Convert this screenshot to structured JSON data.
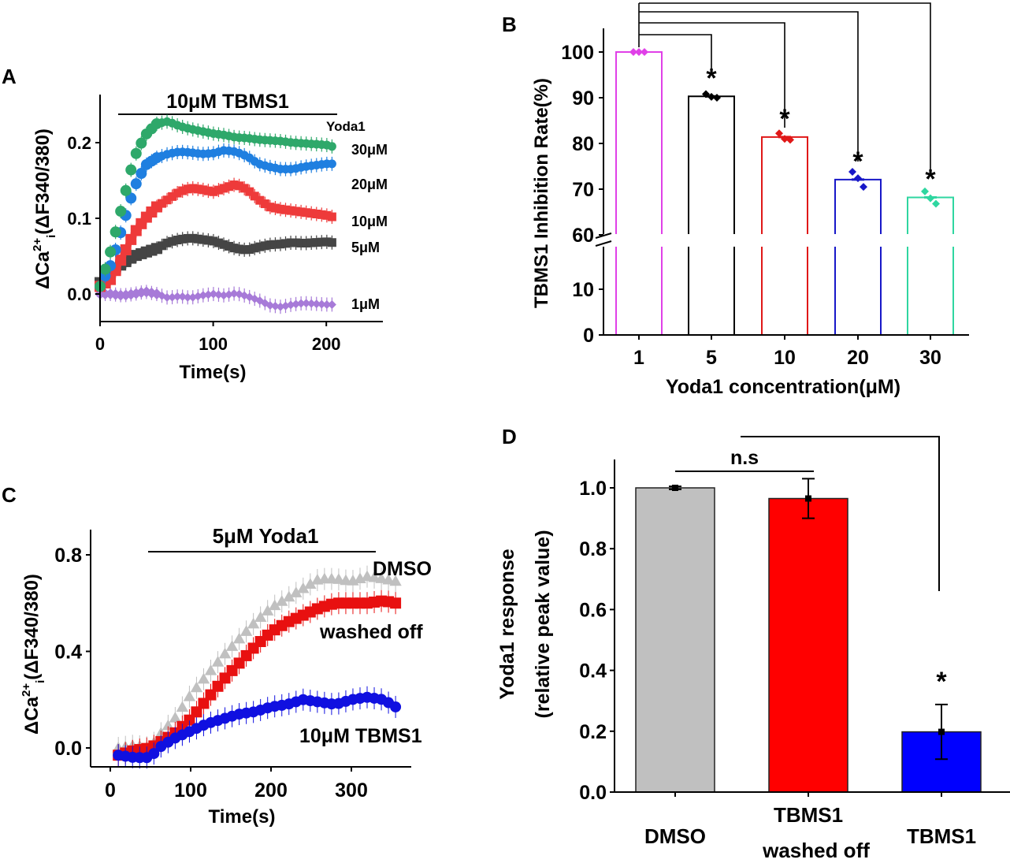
{
  "chart_data": [
    {
      "panel": "A",
      "type": "scatter",
      "title": "10μM TBMS1",
      "xlabel": "Time(s)",
      "ylabel_main": "ΔCa",
      "ylabel_sup": "2+",
      "ylabel_sub": "i",
      "ylabel_rest": "(ΔF340/380)",
      "legend_title": "Yoda1",
      "xlim": [
        0,
        250
      ],
      "ylim": [
        -0.03,
        0.25
      ],
      "xticks": [
        "0",
        "100",
        "200"
      ],
      "xtick_values": [
        0,
        100,
        200
      ],
      "yticks": [
        "0.0",
        "0.1",
        "0.2"
      ],
      "ytick_values": [
        0.0,
        0.1,
        0.2
      ],
      "treatment_bar": [
        18,
        210
      ],
      "series": [
        {
          "name": "30μM",
          "color": "#2ea86a",
          "x": [
            0,
            10,
            20,
            30,
            40,
            50,
            60,
            70,
            80,
            90,
            100,
            110,
            120,
            130,
            140,
            150,
            160,
            170,
            180,
            190,
            200,
            205
          ],
          "y": [
            0.01,
            0.06,
            0.12,
            0.18,
            0.21,
            0.225,
            0.228,
            0.222,
            0.218,
            0.215,
            0.212,
            0.21,
            0.207,
            0.206,
            0.204,
            0.203,
            0.202,
            0.2,
            0.199,
            0.198,
            0.197,
            0.195
          ]
        },
        {
          "name": "20μM",
          "color": "#1f7fe0",
          "x": [
            0,
            10,
            20,
            30,
            40,
            50,
            60,
            70,
            80,
            90,
            100,
            110,
            120,
            130,
            140,
            150,
            160,
            170,
            180,
            190,
            200,
            205
          ],
          "y": [
            0.01,
            0.04,
            0.09,
            0.14,
            0.17,
            0.18,
            0.185,
            0.188,
            0.187,
            0.185,
            0.186,
            0.19,
            0.188,
            0.182,
            0.172,
            0.168,
            0.165,
            0.165,
            0.168,
            0.17,
            0.172,
            0.172
          ]
        },
        {
          "name": "10μM",
          "color": "#ee3a3a",
          "x": [
            0,
            10,
            20,
            30,
            40,
            50,
            60,
            70,
            80,
            90,
            100,
            110,
            120,
            130,
            140,
            150,
            160,
            170,
            180,
            190,
            200,
            205
          ],
          "y": [
            0.01,
            0.02,
            0.05,
            0.08,
            0.1,
            0.115,
            0.125,
            0.135,
            0.14,
            0.138,
            0.135,
            0.14,
            0.145,
            0.138,
            0.125,
            0.115,
            0.112,
            0.11,
            0.108,
            0.106,
            0.104,
            0.102
          ]
        },
        {
          "name": "5μM",
          "color": "#454545",
          "x": [
            0,
            10,
            20,
            30,
            40,
            50,
            60,
            70,
            80,
            90,
            100,
            110,
            120,
            130,
            140,
            150,
            160,
            170,
            180,
            190,
            200,
            205
          ],
          "y": [
            0.015,
            0.03,
            0.04,
            0.05,
            0.055,
            0.06,
            0.068,
            0.072,
            0.074,
            0.072,
            0.07,
            0.065,
            0.06,
            0.058,
            0.062,
            0.065,
            0.066,
            0.068,
            0.067,
            0.068,
            0.069,
            0.068
          ]
        },
        {
          "name": "1μM",
          "color": "#a77ad8",
          "x": [
            0,
            10,
            20,
            30,
            40,
            50,
            60,
            70,
            80,
            90,
            100,
            110,
            120,
            130,
            140,
            150,
            160,
            170,
            180,
            190,
            200,
            205
          ],
          "y": [
            0.0,
            0.0,
            -0.002,
            0.0,
            0.003,
            0.0,
            -0.005,
            -0.003,
            -0.005,
            -0.002,
            0.0,
            -0.002,
            0.001,
            -0.003,
            -0.008,
            -0.015,
            -0.017,
            -0.014,
            -0.012,
            -0.013,
            -0.014,
            -0.014
          ]
        }
      ]
    },
    {
      "panel": "B",
      "type": "bar",
      "xlabel": "Yoda1 concentration(μM)",
      "ylabel": "TBMS1 Inhibition Rate(%)",
      "categories": [
        "1",
        "5",
        "10",
        "20",
        "30"
      ],
      "values": [
        100,
        90.3,
        81.4,
        72.1,
        68.2
      ],
      "colors": [
        "#e040e8",
        "#000000",
        "#e01818",
        "#1818c8",
        "#2fd6a0"
      ],
      "points": [
        [
          100,
          100,
          100
        ],
        [
          90.8,
          90.2,
          90.0
        ],
        [
          82.2,
          81.0,
          80.8
        ],
        [
          73.8,
          72.4,
          70.5
        ],
        [
          69.5,
          68.0,
          66.8
        ]
      ],
      "ylim": [
        0,
        105
      ],
      "axis_break": [
        15,
        57
      ],
      "yticks": [
        "0",
        "10",
        "60",
        "70",
        "80",
        "90",
        "100"
      ],
      "ytick_values": [
        0,
        10,
        60,
        70,
        80,
        90,
        100
      ],
      "significance_marker": "*"
    },
    {
      "panel": "C",
      "type": "scatter",
      "title": "5μM Yoda1",
      "xlabel": "Time(s)",
      "ylabel_main": "ΔCa",
      "ylabel_sup": "2+",
      "ylabel_sub": "i",
      "ylabel_rest": "(ΔF340/380)",
      "xlim": [
        -10,
        400
      ],
      "ylim": [
        -0.08,
        0.9
      ],
      "xticks": [
        "0",
        "100",
        "200",
        "300"
      ],
      "xtick_values": [
        0,
        100,
        200,
        300
      ],
      "yticks": [
        "0.0",
        "0.4",
        "0.8"
      ],
      "ytick_values": [
        0.0,
        0.4,
        0.8
      ],
      "treatment_bar": [
        55,
        365
      ],
      "series": [
        {
          "name": "DMSO",
          "color": "#c0c0c0",
          "x": [
            10,
            30,
            50,
            60,
            80,
            100,
            120,
            140,
            160,
            180,
            200,
            220,
            240,
            260,
            280,
            300,
            320,
            340,
            355
          ],
          "y": [
            0.0,
            0.01,
            0.0,
            0.05,
            0.12,
            0.22,
            0.3,
            0.38,
            0.45,
            0.52,
            0.58,
            0.62,
            0.66,
            0.7,
            0.7,
            0.69,
            0.71,
            0.7,
            0.69
          ]
        },
        {
          "name": "washed off",
          "color": "#e81010",
          "x": [
            10,
            30,
            50,
            60,
            80,
            100,
            120,
            140,
            160,
            180,
            200,
            220,
            240,
            260,
            280,
            300,
            320,
            340,
            355
          ],
          "y": [
            -0.03,
            -0.01,
            0.0,
            0.02,
            0.06,
            0.12,
            0.2,
            0.28,
            0.35,
            0.42,
            0.48,
            0.52,
            0.55,
            0.58,
            0.6,
            0.6,
            0.6,
            0.61,
            0.6
          ]
        },
        {
          "name": "10μM TBMS1",
          "color": "#1010e0",
          "x": [
            10,
            30,
            50,
            60,
            80,
            100,
            120,
            140,
            160,
            180,
            200,
            220,
            240,
            260,
            280,
            300,
            320,
            340,
            355
          ],
          "y": [
            -0.03,
            -0.04,
            -0.04,
            0.0,
            0.04,
            0.07,
            0.1,
            0.12,
            0.14,
            0.15,
            0.17,
            0.18,
            0.2,
            0.19,
            0.18,
            0.2,
            0.21,
            0.2,
            0.17
          ]
        }
      ],
      "series_labels": [
        "DMSO",
        "washed off",
        "10μM TBMS1"
      ]
    },
    {
      "panel": "D",
      "type": "bar",
      "ylabel": "Yoda1 response",
      "ylabel2": "(relative peak  value)",
      "categories": [
        "DMSO",
        "TBMS1",
        "TBMS1"
      ],
      "category_line2": [
        "",
        "washed off",
        ""
      ],
      "values": [
        1.0,
        0.965,
        0.198
      ],
      "errors": [
        0.005,
        0.065,
        0.09
      ],
      "colors": [
        "#c0c0c0",
        "#ff0000",
        "#0000ff"
      ],
      "ylim": [
        0,
        1.1
      ],
      "yticks": [
        "0.0",
        "0.2",
        "0.4",
        "0.6",
        "0.8",
        "1.0"
      ],
      "ytick_values": [
        0.0,
        0.2,
        0.4,
        0.6,
        0.8,
        1.0
      ],
      "ns_label": "n.s",
      "significance_marker": "*"
    }
  ],
  "panel_labels": [
    "A",
    "B",
    "C",
    "D"
  ]
}
